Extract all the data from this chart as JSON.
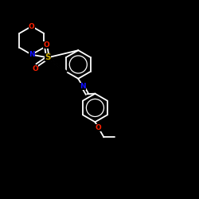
{
  "bg_color": "#000000",
  "bond_color": "#ffffff",
  "N_color": "#1010ff",
  "O_color": "#ff2000",
  "S_color": "#ccaa00",
  "C_color": "#ffffff",
  "lw": 1.3,
  "fs": 6.5,
  "fig_size": [
    2.5,
    2.5
  ],
  "dpi": 100,
  "xlim": [
    0,
    10
  ],
  "ylim": [
    0,
    10
  ]
}
